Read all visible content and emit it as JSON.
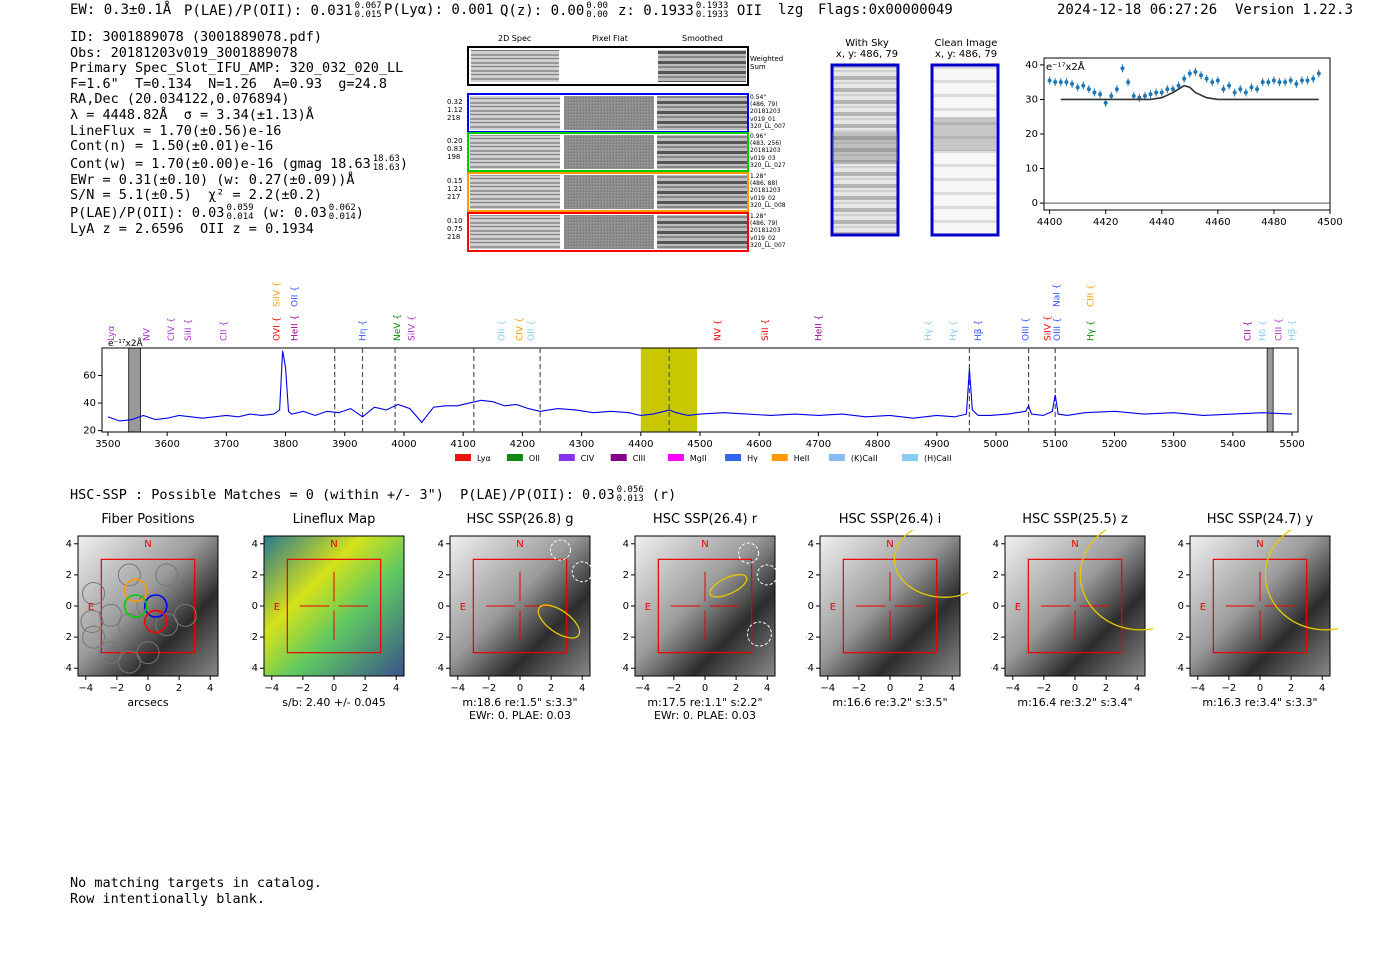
{
  "header": {
    "ew": "EW: 0.3±0.1Å",
    "plae_label": "P(LAE)/P(OII):",
    "plae_val": "0.031",
    "plae_hi": "0.067",
    "plae_lo": "0.015",
    "plya": "P(Lyα): 0.001",
    "qz_label": "Q(z): 0.00",
    "qz_hi": "0.00",
    "qz_lo": "0.00",
    "z_label": "z: 0.1933",
    "z_hi": "0.1933",
    "z_lo": "0.1933",
    "z_line": "OII",
    "lzg": "lzg",
    "flags": "Flags:0x00000049",
    "datetime": "2024-12-18 06:27:26",
    "version": "Version 1.22.3"
  },
  "info": {
    "id": "ID: 3001889078 (3001889078.pdf)",
    "obs": "Obs: 20181203v019_3001889078",
    "spec": "Primary Spec_Slot_IFU_AMP: 320_032_020_LL",
    "fitpars": "F=1.6\"  T=0.134  N=1.26  A=0.93  g=24.8",
    "radec": "RA,Dec (20.034122,0.076894)",
    "lambda": "λ = 4448.82Å  σ = 3.34(±1.13)Å",
    "lineflux": "LineFlux = 1.70(±0.56)e-16",
    "contn": "Cont(n) = 1.50(±0.01)e-16",
    "contw": "Cont(w) = 1.70(±0.00)e-16 (gmag 18.63",
    "contw_hi": "18.63",
    "contw_lo": "18.63",
    "ewr": "EWr = 0.31(±0.10) (w: 0.27(±0.09))Å",
    "sn": "S/N = 5.1(±0.5)  χ² = 2.2(±0.2)",
    "plae": "P(LAE)/P(OII): 0.03",
    "plae_hi": "0.059",
    "plae_lo": "0.014",
    "plae_w": "(w: 0.03",
    "plae_w_hi": "0.062",
    "plae_w_lo": "0.014",
    "lya_z": "LyA z = 2.6596  OII z = 0.1934"
  },
  "cutouts": {
    "col_headers": [
      "2D Spec",
      "Pixel Flat",
      "Smoothed"
    ],
    "weighted_sum": "Weighted Sum",
    "rows": [
      {
        "color": "#0000ff",
        "left": [
          "0.32",
          "1.12",
          "218"
        ],
        "right": [
          "0.54\"",
          "(486, 79)",
          "20181203",
          "v019_01",
          "320_LL_007"
        ]
      },
      {
        "color": "#00cc00",
        "left": [
          "0.20",
          "0.83",
          "198"
        ],
        "right": [
          "0.96\"",
          "(483, 256)",
          "20181203",
          "v019_03",
          "320_LL_027"
        ]
      },
      {
        "color": "#ff9900",
        "left": [
          "0.15",
          "1.21",
          "217"
        ],
        "right": [
          "1.28\"",
          "(486, 88)",
          "20181203",
          "v019_02",
          "320_LL_008"
        ]
      },
      {
        "color": "#ff0000",
        "left": [
          "0.10",
          "0.75",
          "218"
        ],
        "right": [
          "1.28\"",
          "(486, 79)",
          "20181203",
          "v019_02",
          "320_LL_007"
        ]
      }
    ]
  },
  "sky": {
    "with_sky_title": "With Sky",
    "with_sky_xy": "x, y: 486, 79",
    "clean_title": "Clean Image",
    "clean_xy": "x, y: 486, 79"
  },
  "zoom_chart": {
    "unit": "e⁻¹⁷x2Å"
  },
  "spectrum": {
    "unit": "e⁻¹⁷x2Å",
    "line_labels": [
      {
        "t": "Lyα",
        "x": 3510,
        "c": "#aa33cc",
        "row": 2
      },
      {
        "t": "NV",
        "x": 3570,
        "c": "#aa33cc",
        "row": 2
      },
      {
        "t": "CIV {",
        "x": 3612,
        "c": "#aa33cc",
        "row": 2
      },
      {
        "t": "SiII {",
        "x": 3640,
        "c": "#aa33cc",
        "row": 2
      },
      {
        "t": "CII {",
        "x": 3700,
        "c": "#aa33cc",
        "row": 2
      },
      {
        "t": "SiIV {",
        "x": 3790,
        "c": "#ff9900",
        "row": 0
      },
      {
        "t": "OVI {",
        "x": 3790,
        "c": "#ff0000",
        "row": 2
      },
      {
        "t": "OII {",
        "x": 3820,
        "c": "#3355ff",
        "row": 0
      },
      {
        "t": "HeII {",
        "x": 3820,
        "c": "#990099",
        "row": 2
      },
      {
        "t": "Hη {",
        "x": 3935,
        "c": "#3355ff",
        "row": 2
      },
      {
        "t": "NeV {",
        "x": 3993,
        "c": "#008800",
        "row": 2
      },
      {
        "t": "SiIV {",
        "x": 4018,
        "c": "#aa33cc",
        "row": 2
      },
      {
        "t": "OII {",
        "x": 4170,
        "c": "#88ccee",
        "row": 2
      },
      {
        "t": "CIV {",
        "x": 4200,
        "c": "#ff9900",
        "row": 2
      },
      {
        "t": "OII {",
        "x": 4220,
        "c": "#88ccee",
        "row": 2
      },
      {
        "t": "NV {",
        "x": 4535,
        "c": "#ff0000",
        "row": 2
      },
      {
        "t": "SiII {",
        "x": 4615,
        "c": "#ff0000",
        "row": 2
      },
      {
        "t": "HeII {",
        "x": 4705,
        "c": "#990099",
        "row": 2
      },
      {
        "t": "Hγ {",
        "x": 4890,
        "c": "#88ccee",
        "row": 2
      },
      {
        "t": "Hγ {",
        "x": 4932,
        "c": "#88ccee",
        "row": 2
      },
      {
        "t": "Hβ {",
        "x": 4975,
        "c": "#3355ff",
        "row": 2
      },
      {
        "t": "NaI {",
        "x": 5107,
        "c": "#3355ff",
        "row": 0
      },
      {
        "t": "OIII {",
        "x": 5055,
        "c": "#3355ff",
        "row": 2
      },
      {
        "t": "SiIV {",
        "x": 5092,
        "c": "#ff0000",
        "row": 2
      },
      {
        "t": "OIII {",
        "x": 5108,
        "c": "#3355ff",
        "row": 2
      },
      {
        "t": "CIII {",
        "x": 5165,
        "c": "#ff9900",
        "row": 0
      },
      {
        "t": "Hγ {",
        "x": 5165,
        "c": "#008800",
        "row": 2
      },
      {
        "t": "CII {",
        "x": 5430,
        "c": "#990099",
        "row": 2
      },
      {
        "t": "Hδ {",
        "x": 5455,
        "c": "#88ccee",
        "row": 2
      },
      {
        "t": "CIII {",
        "x": 5482,
        "c": "#aa33cc",
        "row": 2
      },
      {
        "t": "Hβ {",
        "x": 5505,
        "c": "#88ccee",
        "row": 2
      }
    ],
    "legend": [
      {
        "name": "Lyα",
        "color": "#ee1111"
      },
      {
        "name": "OII",
        "color": "#118811"
      },
      {
        "name": "CIV",
        "color": "#8833ee"
      },
      {
        "name": "CIII",
        "color": "#880088"
      },
      {
        "name": "MgII",
        "color": "#ff00ff"
      },
      {
        "name": "Hγ",
        "color": "#3366ee"
      },
      {
        "name": "HeII",
        "color": "#ff9900"
      },
      {
        "name": "(K)CaII",
        "color": "#88bbee"
      },
      {
        "name": "(H)CaII",
        "color": "#88ccee"
      }
    ]
  },
  "hsc": {
    "summary": "HSC-SSP : Possible Matches = 0 (within +/- 3\")",
    "plae": "P(LAE)/P(OII): 0.03",
    "plae_hi": "0.056",
    "plae_lo": "0.013",
    "plae_suffix": "(r)",
    "panels": [
      {
        "title": "Fiber Positions",
        "cap1": "arcsecs",
        "cap2": ""
      },
      {
        "title": "Lineflux Map",
        "cap1": "s/b: 2.40 +/- 0.045",
        "cap2": ""
      },
      {
        "title": "HSC SSP(26.8) g",
        "cap1": "m:18.6  re:1.5\"  s:3.3\"",
        "cap2": "EWr: 0. PLAE: 0.03"
      },
      {
        "title": "HSC SSP(26.4) r",
        "cap1": "m:17.5  re:1.1\"  s:2.2\"",
        "cap2": "EWr: 0. PLAE: 0.03"
      },
      {
        "title": "HSC SSP(26.4) i",
        "cap1": "m:16.6  re:3.2\"  s:3.5\"",
        "cap2": ""
      },
      {
        "title": "HSC SSP(25.5) z",
        "cap1": "m:16.4  re:3.2\"  s:3.4\"",
        "cap2": ""
      },
      {
        "title": "HSC SSP(24.7) y",
        "cap1": "m:16.3  re:3.4\"  s:3.3\"",
        "cap2": ""
      }
    ],
    "n_label": "N",
    "e_label": "E"
  },
  "footer": {
    "line1": "No matching targets in catalog.",
    "line2": "Row intentionally blank."
  },
  "chart_data": [
    {
      "type": "scatter",
      "title": "",
      "xlabel": "",
      "ylabel": "e⁻¹⁷x2Å",
      "xlim": [
        4398,
        4500
      ],
      "ylim": [
        -2,
        42
      ],
      "xticks": [
        4400,
        4420,
        4440,
        4460,
        4480,
        4500
      ],
      "yticks": [
        0,
        10,
        20,
        30,
        40
      ],
      "series": [
        {
          "name": "",
          "x": [
            4400,
            4402,
            4404,
            4406,
            4408,
            4410,
            4412,
            4414,
            4416,
            4418,
            4420,
            4422,
            4424,
            4426,
            4428,
            4430,
            4432,
            4434,
            4436,
            4438,
            4440,
            4442,
            4444,
            4446,
            4448,
            4450,
            4452,
            4454,
            4456,
            4458,
            4460,
            4462,
            4464,
            4466,
            4468,
            4470,
            4472,
            4474,
            4476,
            4478,
            4480,
            4482,
            4484,
            4486,
            4488,
            4490,
            4492,
            4494,
            4496
          ],
          "y": [
            35.5,
            35,
            35,
            35,
            34.5,
            33.5,
            34,
            33,
            32,
            31.5,
            29,
            31,
            33,
            39,
            35,
            31,
            30.5,
            31,
            31.5,
            32,
            32,
            33,
            33,
            34,
            36,
            37.5,
            38,
            37,
            36,
            35,
            35.5,
            33,
            34,
            32,
            33,
            32,
            33.5,
            33,
            35,
            35,
            35.5,
            35,
            35,
            35.5,
            34.5,
            35.5,
            35.5,
            36,
            37.5
          ]
        },
        {
          "name": "",
          "type": "line",
          "x": [
            4404,
            4436,
            4440,
            4444,
            4446,
            4448,
            4450,
            4452,
            4456,
            4460,
            4496
          ],
          "y": [
            30,
            30,
            30.5,
            32,
            33,
            34,
            33.5,
            32,
            30.5,
            30,
            30
          ]
        }
      ]
    },
    {
      "type": "line",
      "title": "",
      "xlabel": "",
      "ylabel": "e⁻¹⁷x2Å",
      "xlim": [
        3490,
        5510
      ],
      "ylim": [
        19,
        80
      ],
      "xticks": [
        3500,
        3600,
        3700,
        3800,
        3900,
        4000,
        4100,
        4200,
        4300,
        4400,
        4500,
        4600,
        4700,
        4800,
        4900,
        5000,
        5100,
        5200,
        5300,
        5400,
        5500
      ],
      "yticks": [
        20,
        40,
        60
      ],
      "highlight_band": [
        4400,
        4495
      ],
      "dashed_lines": [
        3883,
        3930,
        3985,
        4118,
        4230,
        4448,
        4955,
        5055,
        5100
      ],
      "masked_bands": [
        [
          3535,
          3555
        ],
        [
          5458,
          5468
        ]
      ],
      "series": [
        {
          "name": "",
          "x": [
            3500,
            3520,
            3540,
            3560,
            3580,
            3600,
            3620,
            3640,
            3660,
            3680,
            3700,
            3720,
            3740,
            3760,
            3780,
            3790,
            3795,
            3800,
            3805,
            3810,
            3830,
            3850,
            3870,
            3890,
            3910,
            3930,
            3950,
            3970,
            3990,
            4010,
            4030,
            4050,
            4070,
            4090,
            4110,
            4130,
            4150,
            4170,
            4190,
            4210,
            4230,
            4260,
            4290,
            4320,
            4350,
            4380,
            4400,
            4420,
            4440,
            4448,
            4460,
            4480,
            4500,
            4540,
            4580,
            4620,
            4660,
            4700,
            4740,
            4780,
            4820,
            4860,
            4900,
            4930,
            4950,
            4955,
            4960,
            4970,
            4990,
            5020,
            5050,
            5055,
            5060,
            5080,
            5095,
            5100,
            5105,
            5120,
            5150,
            5200,
            5250,
            5300,
            5350,
            5400,
            5450,
            5500
          ],
          "y": [
            30,
            27,
            28,
            31,
            28,
            29,
            31,
            30,
            29,
            30,
            31,
            30,
            32,
            31,
            32,
            35,
            78,
            66,
            34,
            32,
            34,
            31,
            34,
            33,
            36,
            30,
            37,
            35,
            39,
            36,
            26,
            37,
            38,
            38,
            40,
            42,
            41,
            38,
            39,
            36,
            34,
            36,
            35,
            33,
            34,
            33,
            31,
            32,
            34,
            35,
            33,
            31,
            32,
            33,
            32,
            31,
            32,
            31,
            32,
            30,
            31,
            29,
            31,
            30,
            32,
            65,
            35,
            31,
            31,
            32,
            34,
            38,
            32,
            31,
            34,
            46,
            32,
            31,
            33,
            34,
            32,
            33,
            31,
            32,
            33,
            32
          ]
        }
      ]
    }
  ]
}
